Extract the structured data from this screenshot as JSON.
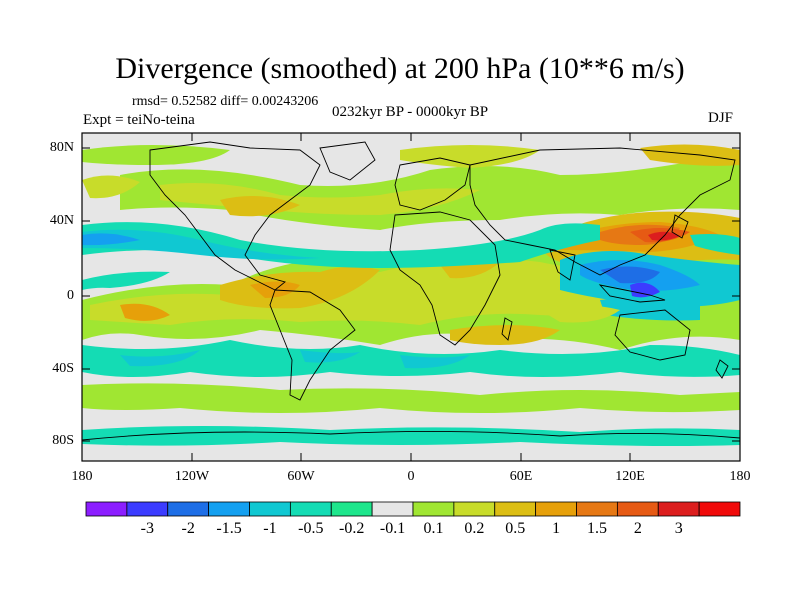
{
  "title": "Divergence (smoothed) at 200 hPa (10**6 m/s)",
  "stats_text": "rmsd= 0.52582 diff= 0.00243206",
  "period_text": "0232kyr BP - 0000kyr BP",
  "experiment_text": "Expt = teiNo-teina",
  "season_text": "DJF",
  "lat_ticks": [
    "80N",
    "40N",
    "0",
    "40S",
    "80S"
  ],
  "lon_ticks": [
    "180",
    "120W",
    "60W",
    "0",
    "60E",
    "120E",
    "180"
  ],
  "colorbar": {
    "colors": [
      "#8c1eff",
      "#3c3cff",
      "#1e6ee6",
      "#14a0f0",
      "#10c8d2",
      "#14dcb4",
      "#1ee68c",
      "#e6e6e6",
      "#a0e632",
      "#c8dc2a",
      "#dcbe14",
      "#e6a00a",
      "#e67814",
      "#e65a14",
      "#dc1e1e",
      "#f00a0a"
    ],
    "labels": [
      "-3",
      "-2",
      "-1.5",
      "-1",
      "-0.5",
      "-0.2",
      "-0.1",
      "0.1",
      "0.2",
      "0.5",
      "1",
      "1.5",
      "2",
      "3"
    ]
  },
  "chart_data": {
    "type": "heatmap",
    "title": "Divergence (smoothed) at 200 hPa (10**6 m/s)",
    "units": "10**6 m/s",
    "projection": "cylindrical equidistant",
    "lon_range": [
      -180,
      180
    ],
    "lat_range": [
      -90,
      90
    ],
    "contour_levels": [
      -3,
      -2,
      -1.5,
      -1,
      -0.5,
      -0.2,
      -0.1,
      0.1,
      0.2,
      0.5,
      1,
      1.5,
      2,
      3
    ],
    "notable_features": [
      {
        "lon": 135,
        "lat": 30,
        "value": 2.5
      },
      {
        "lon": 128,
        "lat": 0,
        "value": -2.5
      },
      {
        "lon": 100,
        "lat": 10,
        "value": -1.5
      },
      {
        "lon": -60,
        "lat": 5,
        "value": 1.0
      },
      {
        "lon": -155,
        "lat": 35,
        "value": -1.0
      }
    ]
  }
}
